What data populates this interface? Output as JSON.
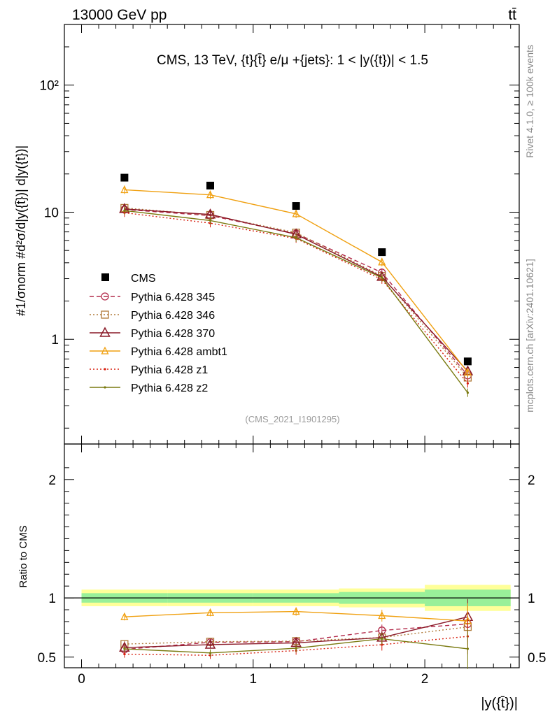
{
  "header": {
    "left": "13000 GeV pp",
    "right": "tt̄"
  },
  "side": {
    "rivet": "Rivet 4.1.0, ≥ 100k events",
    "mcplots": "mcplots.cern.ch [arXiv:2401.10621]"
  },
  "chart_data": {
    "type": "line",
    "title": "CMS, 13 TeV, {t}{t̄} e/μ +{jets}: 1 < |y({t})| < 1.5",
    "analysis_tag": "(CMS_2021_I1901295)",
    "xlabel": "|y({t̄})|",
    "ylabel_main": "#1/σnorm #d²σ/d|y({t̄})| d|y({t})|",
    "ylabel_ratio": "Ratio to CMS",
    "xlim": [
      -0.1,
      2.55
    ],
    "ylim_main": [
      0.15,
      300
    ],
    "ylim_ratio": [
      0.41,
      2.3
    ],
    "xticks": [
      0,
      1,
      2
    ],
    "yticks_main": [
      {
        "v": 1,
        "label": "1"
      },
      {
        "v": 10,
        "label": "10"
      },
      {
        "v": 100,
        "label": "10²"
      }
    ],
    "yticks_ratio": [
      {
        "v": 0.5,
        "label": "0.5"
      },
      {
        "v": 1,
        "label": "1"
      },
      {
        "v": 2,
        "label": "2"
      }
    ],
    "x": [
      0.25,
      0.75,
      1.25,
      1.75,
      2.25
    ],
    "bin_edges": [
      0,
      0.5,
      1.0,
      1.5,
      2.0,
      2.5
    ],
    "data": {
      "name": "CMS",
      "values": [
        18.7,
        16.2,
        11.2,
        4.85,
        0.67
      ],
      "ratio_band_inner": [
        0.04,
        0.04,
        0.04,
        0.05,
        0.07
      ],
      "ratio_band_outer": [
        0.07,
        0.07,
        0.07,
        0.08,
        0.11
      ]
    },
    "series": [
      {
        "name": "Pythia 6.428 345",
        "color": "#b22a4a",
        "style": "dashed",
        "marker": "circle",
        "values": [
          10.5,
          9.4,
          6.8,
          3.35,
          0.52
        ],
        "ratio": [
          0.565,
          0.625,
          0.63,
          0.725,
          0.78
        ],
        "ratio_err": [
          0.03,
          0.03,
          0.035,
          0.05,
          0.15
        ]
      },
      {
        "name": "Pythia 6.428 346",
        "color": "#b07a3a",
        "style": "dotted",
        "marker": "square",
        "values": [
          10.8,
          9.5,
          6.9,
          3.15,
          0.5
        ],
        "ratio": [
          0.61,
          0.63,
          0.635,
          0.665,
          0.755
        ],
        "ratio_err": [
          0.03,
          0.03,
          0.035,
          0.05,
          0.15
        ]
      },
      {
        "name": "Pythia 6.428 370",
        "color": "#8a1a28",
        "style": "solid",
        "marker": "triangle",
        "values": [
          10.6,
          9.6,
          6.7,
          3.1,
          0.56
        ],
        "ratio": [
          0.58,
          0.605,
          0.62,
          0.665,
          0.84
        ],
        "ratio_err": [
          0.03,
          0.03,
          0.035,
          0.05,
          0.15
        ]
      },
      {
        "name": "Pythia 6.428 ambt1",
        "color": "#f0a010",
        "style": "solid",
        "marker": "triangle-open",
        "values": [
          15.0,
          13.7,
          9.7,
          4.05,
          0.55
        ],
        "ratio": [
          0.84,
          0.875,
          0.885,
          0.85,
          0.805
        ],
        "ratio_err": [
          0.03,
          0.03,
          0.035,
          0.05,
          0.15
        ]
      },
      {
        "name": "Pythia 6.428 z1",
        "color": "#d82010",
        "style": "dotted",
        "marker": "dot",
        "values": [
          9.9,
          8.2,
          6.2,
          2.95,
          0.45
        ],
        "ratio": [
          0.525,
          0.515,
          0.555,
          0.605,
          0.675
        ],
        "ratio_err": [
          0.03,
          0.03,
          0.035,
          0.05,
          0.15
        ]
      },
      {
        "name": "Pythia 6.428 z2",
        "color": "#7a7a10",
        "style": "solid",
        "marker": "dot",
        "values": [
          10.3,
          8.6,
          6.3,
          3.05,
          0.38
        ],
        "ratio": [
          0.57,
          0.535,
          0.575,
          0.655,
          0.57
        ],
        "ratio_err": [
          0.03,
          0.03,
          0.035,
          0.05,
          0.17
        ]
      }
    ]
  }
}
